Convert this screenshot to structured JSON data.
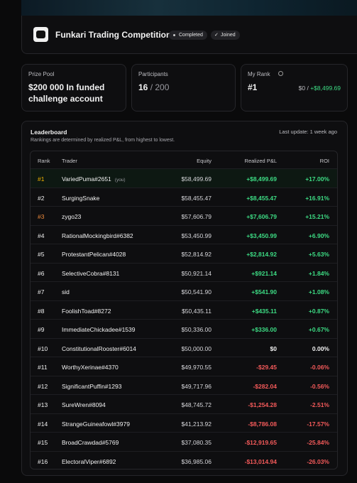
{
  "header": {
    "title": "Funkari Trading Competition",
    "badges": [
      "Completed",
      "Joined"
    ]
  },
  "stats": [
    {
      "label": "Prize Pool",
      "value": "$200 000 In funded challenge account"
    },
    {
      "label": "Participants",
      "value": "16",
      "total": "/ 200"
    },
    {
      "label": "My Rank",
      "value": "#1",
      "balance": "$0 /",
      "pnl": "+$8,499.69"
    }
  ],
  "leaderboard": {
    "title": "Leaderboard",
    "subtitle": "Rankings are determined by realized P&L, from highest to lowest.",
    "last_update": "Last update: 1 week ago",
    "columns": [
      "Rank",
      "Trader",
      "Equity",
      "Realized P&L",
      "ROI"
    ],
    "you_tag": "(you)",
    "rows": [
      [
        "#1",
        "VariedPuma#2651",
        "$58,499.69",
        "+$8,499.69",
        "+17.00%"
      ],
      [
        "#2",
        "SurgingSnake",
        "$58,455.47",
        "+$8,455.47",
        "+16.91%"
      ],
      [
        "#3",
        "zygo23",
        "$57,606.79",
        "+$7,606.79",
        "+15.21%"
      ],
      [
        "#4",
        "RationalMockingbird#6382",
        "$53,450.99",
        "+$3,450.99",
        "+6.90%"
      ],
      [
        "#5",
        "ProtestantPelican#4028",
        "$52,814.92",
        "+$2,814.92",
        "+5.63%"
      ],
      [
        "#6",
        "SelectiveCobra#8131",
        "$50,921.14",
        "+$921.14",
        "+1.84%"
      ],
      [
        "#7",
        "sid",
        "$50,541.90",
        "+$541.90",
        "+1.08%"
      ],
      [
        "#8",
        "FoolishToad#8272",
        "$50,435.11",
        "+$435.11",
        "+0.87%"
      ],
      [
        "#9",
        "ImmediateChickadee#1539",
        "$50,336.00",
        "+$336.00",
        "+0.67%"
      ],
      [
        "#10",
        "ConstitutionalRooster#6014",
        "$50,000.00",
        "$0",
        "0.00%"
      ],
      [
        "#11",
        "WorthyXerinae#4370",
        "$49,970.55",
        "-$29.45",
        "-0.06%"
      ],
      [
        "#12",
        "SignificantPuffin#1293",
        "$49,717.96",
        "-$282.04",
        "-0.56%"
      ],
      [
        "#13",
        "SureWren#8094",
        "$48,745.72",
        "-$1,254.28",
        "-2.51%"
      ],
      [
        "#14",
        "StrangeGuineafowl#3979",
        "$41,213.92",
        "-$8,786.08",
        "-17.57%"
      ],
      [
        "#15",
        "BroadCrawdad#5769",
        "$37,080.35",
        "-$12,919.65",
        "-25.84%"
      ],
      [
        "#16",
        "ElectoralViper#6892",
        "$36,985.06",
        "-$13,014.94",
        "-26.03%"
      ]
    ]
  }
}
